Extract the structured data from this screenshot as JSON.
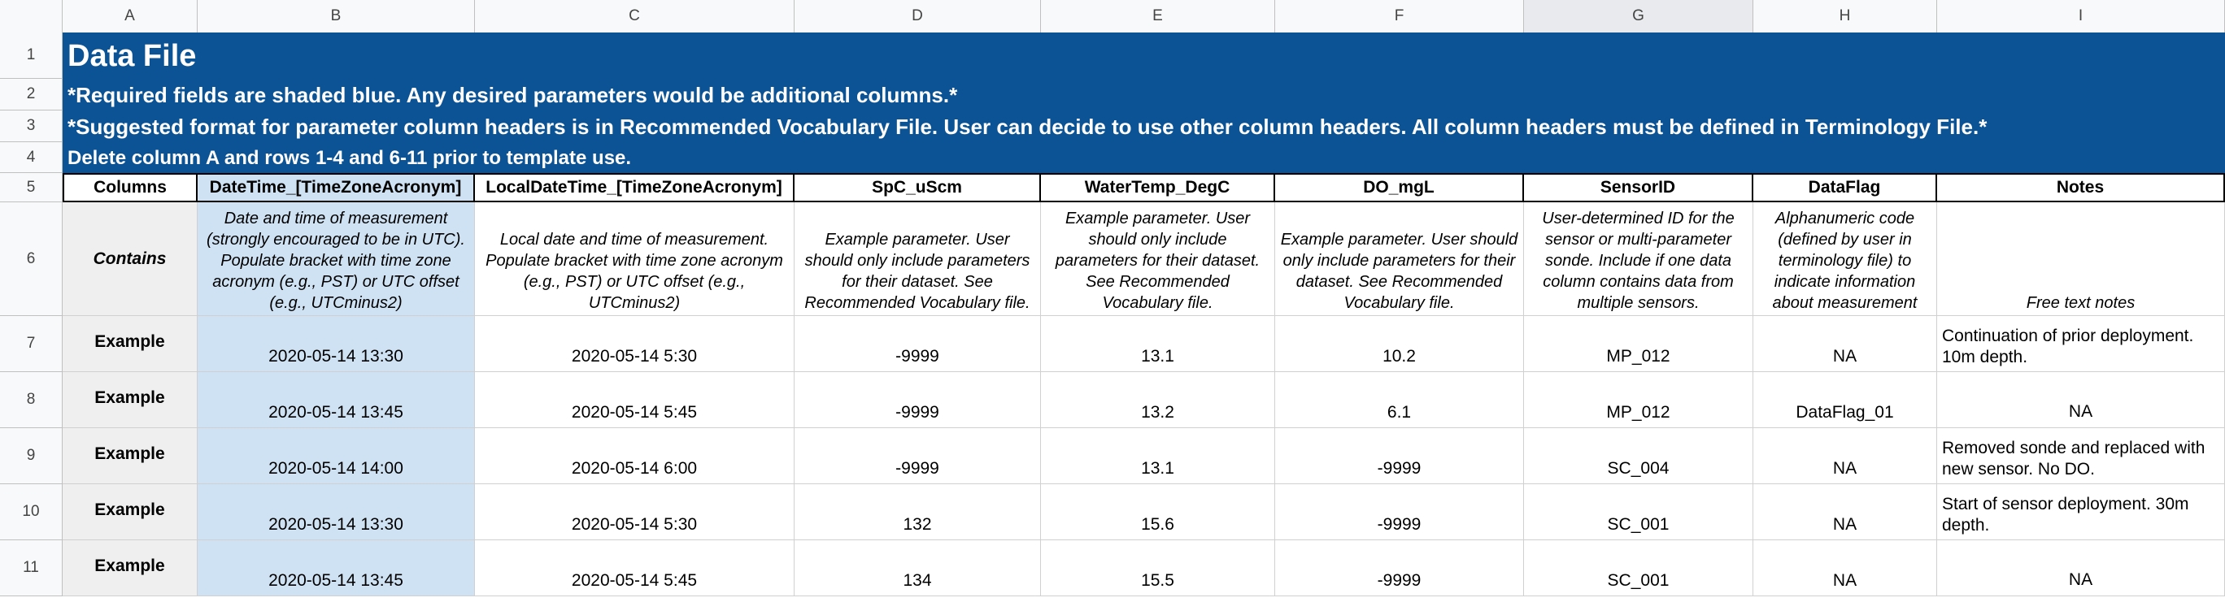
{
  "columns": [
    "A",
    "B",
    "C",
    "D",
    "E",
    "F",
    "G",
    "H",
    "I"
  ],
  "rows": [
    "1",
    "2",
    "3",
    "4",
    "5",
    "6",
    "7",
    "8",
    "9",
    "10",
    "11"
  ],
  "banner": {
    "title": "Data File",
    "line2": "*Required fields are shaded blue. Any desired parameters would be additional columns.*",
    "line3": "*Suggested format for parameter column headers is in Recommended Vocabulary File. User can decide to use other column headers. All column headers must be defined in Terminology File.*",
    "line4": "Delete column A and rows 1-4 and 6-11 prior to template use."
  },
  "headers": [
    "Columns",
    "DateTime_[TimeZoneAcronym]",
    "LocalDateTime_[TimeZoneAcronym]",
    "SpC_uScm",
    "WaterTemp_DegC",
    "DO_mgL",
    "SensorID",
    "DataFlag",
    "Notes"
  ],
  "contains": {
    "label": "Contains",
    "b": "Date and time of measurement (strongly encouraged to be in UTC). Populate bracket with time zone acronym (e.g., PST) or UTC offset (e.g., UTCminus2)",
    "c": "Local date and time of measurement. Populate bracket with time zone acronym (e.g., PST) or UTC offset (e.g., UTCminus2)",
    "d": "Example parameter. User should only include parameters for their dataset. See Recommended Vocabulary file.",
    "e": "Example parameter. User should only include parameters for their dataset. See Recommended Vocabulary file.",
    "f": "Example parameter. User should only include parameters for their dataset. See Recommended Vocabulary file.",
    "g": "User-determined ID for the sensor or multi-parameter sonde. Include if one data column contains data from multiple sensors.",
    "h": "Alphanumeric code (defined by user in terminology file) to indicate information about measurement",
    "i": "Free text notes"
  },
  "examples": [
    {
      "label": "Example",
      "datetime": "2020-05-14 13:30",
      "local": "2020-05-14 5:30",
      "spc": "-9999",
      "temp": "13.1",
      "do": "10.2",
      "sensor": "MP_012",
      "flag": "NA",
      "notes": "Continuation of prior deployment. 10m depth."
    },
    {
      "label": "Example",
      "datetime": "2020-05-14 13:45",
      "local": "2020-05-14 5:45",
      "spc": "-9999",
      "temp": "13.2",
      "do": "6.1",
      "sensor": "MP_012",
      "flag": "DataFlag_01",
      "notes": "NA"
    },
    {
      "label": "Example",
      "datetime": "2020-05-14 14:00",
      "local": "2020-05-14 6:00",
      "spc": "-9999",
      "temp": "13.1",
      "do": "-9999",
      "sensor": "SC_004",
      "flag": "NA",
      "notes": "Removed sonde and replaced with new sensor. No DO."
    },
    {
      "label": "Example",
      "datetime": "2020-05-14 13:30",
      "local": "2020-05-14 5:30",
      "spc": "132",
      "temp": "15.6",
      "do": "-9999",
      "sensor": "SC_001",
      "flag": "NA",
      "notes": "Start of sensor deployment. 30m depth."
    },
    {
      "label": "Example",
      "datetime": "2020-05-14 13:45",
      "local": "2020-05-14 5:45",
      "spc": "134",
      "temp": "15.5",
      "do": "-9999",
      "sensor": "SC_001",
      "flag": "NA",
      "notes": "NA"
    }
  ]
}
